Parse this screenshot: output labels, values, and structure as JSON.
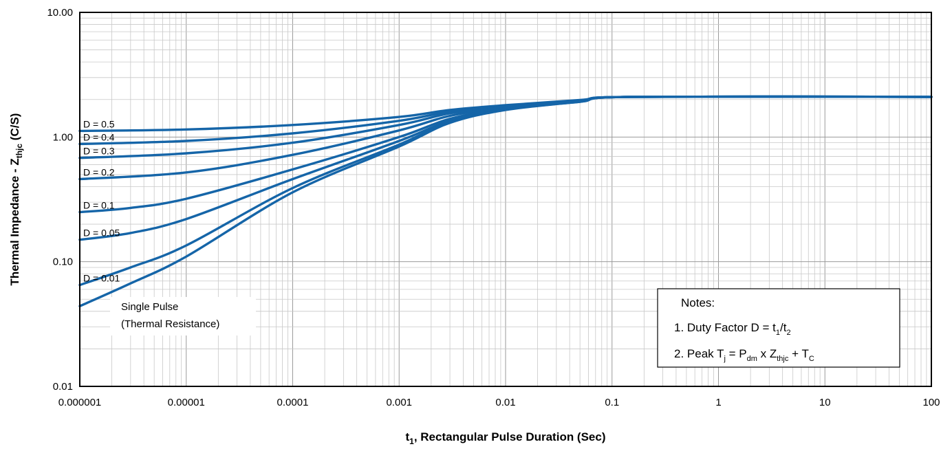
{
  "chart_data": {
    "type": "line",
    "x_scale": "log",
    "y_scale": "log",
    "xlim": [
      1e-06,
      100
    ],
    "ylim": [
      0.01,
      10
    ],
    "grid": true,
    "xlabel": "t1, Rectangular Pulse Duration (Sec)",
    "ylabel": "Thermal Impedance - Zthjc (C/S)",
    "x_ticks": [
      "0.000001",
      "0.00001",
      "0.0001",
      "0.001",
      "0.01",
      "0.1",
      "1",
      "10",
      "100"
    ],
    "y_ticks": [
      "0.01",
      "0.10",
      "1.00",
      "10.00"
    ],
    "line_color": "#1565a8",
    "series": [
      {
        "name": "D = 0.5",
        "x": [
          1e-06,
          1e-05,
          0.0001,
          0.001,
          0.003,
          0.01,
          0.05,
          0.15,
          100
        ],
        "y": [
          1.12,
          1.15,
          1.25,
          1.45,
          1.65,
          1.8,
          1.98,
          2.1,
          2.1
        ]
      },
      {
        "name": "D = 0.4",
        "x": [
          1e-06,
          1e-05,
          0.0001,
          0.001,
          0.003,
          0.01,
          0.05,
          0.15,
          100
        ],
        "y": [
          0.88,
          0.93,
          1.07,
          1.35,
          1.6,
          1.78,
          1.97,
          2.1,
          2.1
        ]
      },
      {
        "name": "D = 0.3",
        "x": [
          1e-06,
          1e-05,
          0.0001,
          0.001,
          0.003,
          0.01,
          0.05,
          0.15,
          100
        ],
        "y": [
          0.68,
          0.74,
          0.9,
          1.25,
          1.55,
          1.76,
          1.96,
          2.1,
          2.1
        ]
      },
      {
        "name": "D = 0.2",
        "x": [
          1e-06,
          1e-05,
          0.0001,
          0.001,
          0.003,
          0.01,
          0.05,
          0.15,
          100
        ],
        "y": [
          0.46,
          0.52,
          0.72,
          1.13,
          1.48,
          1.73,
          1.95,
          2.1,
          2.1
        ]
      },
      {
        "name": "D = 0.1",
        "x": [
          1e-06,
          3e-06,
          1e-05,
          0.0001,
          0.001,
          0.003,
          0.01,
          0.05,
          0.15,
          100
        ],
        "y": [
          0.25,
          0.27,
          0.32,
          0.55,
          1.0,
          1.4,
          1.7,
          1.94,
          2.1,
          2.1
        ]
      },
      {
        "name": "D = 0.05",
        "x": [
          1e-06,
          3e-06,
          1e-05,
          0.0001,
          0.001,
          0.003,
          0.01,
          0.05,
          0.15,
          100
        ],
        "y": [
          0.15,
          0.17,
          0.22,
          0.46,
          0.93,
          1.35,
          1.68,
          1.93,
          2.1,
          2.1
        ]
      },
      {
        "name": "D = 0.01",
        "x": [
          1e-06,
          3e-06,
          1e-05,
          0.0001,
          0.001,
          0.003,
          0.01,
          0.05,
          0.15,
          100
        ],
        "y": [
          0.065,
          0.09,
          0.135,
          0.39,
          0.87,
          1.32,
          1.66,
          1.92,
          2.1,
          2.1
        ]
      },
      {
        "name": "Single Pulse",
        "x": [
          1e-06,
          3e-06,
          1e-05,
          0.0001,
          0.001,
          0.003,
          0.01,
          0.05,
          0.15,
          100
        ],
        "y": [
          0.044,
          0.067,
          0.11,
          0.36,
          0.84,
          1.3,
          1.65,
          1.92,
          2.1,
          2.1
        ]
      }
    ],
    "series_labels": [
      "D = 0.5",
      "D = 0.4",
      "D = 0.3",
      "D = 0.2",
      "D = 0.1",
      "D = 0.05",
      "D = 0.01"
    ],
    "single_pulse_label": [
      "Single Pulse",
      "(Thermal Resistance)"
    ],
    "notes": {
      "title": "Notes:",
      "line1": "1. Duty Factor D = t1/t2",
      "line2": "2. Peak Tj = Pdm x Zthjc + TC"
    }
  }
}
